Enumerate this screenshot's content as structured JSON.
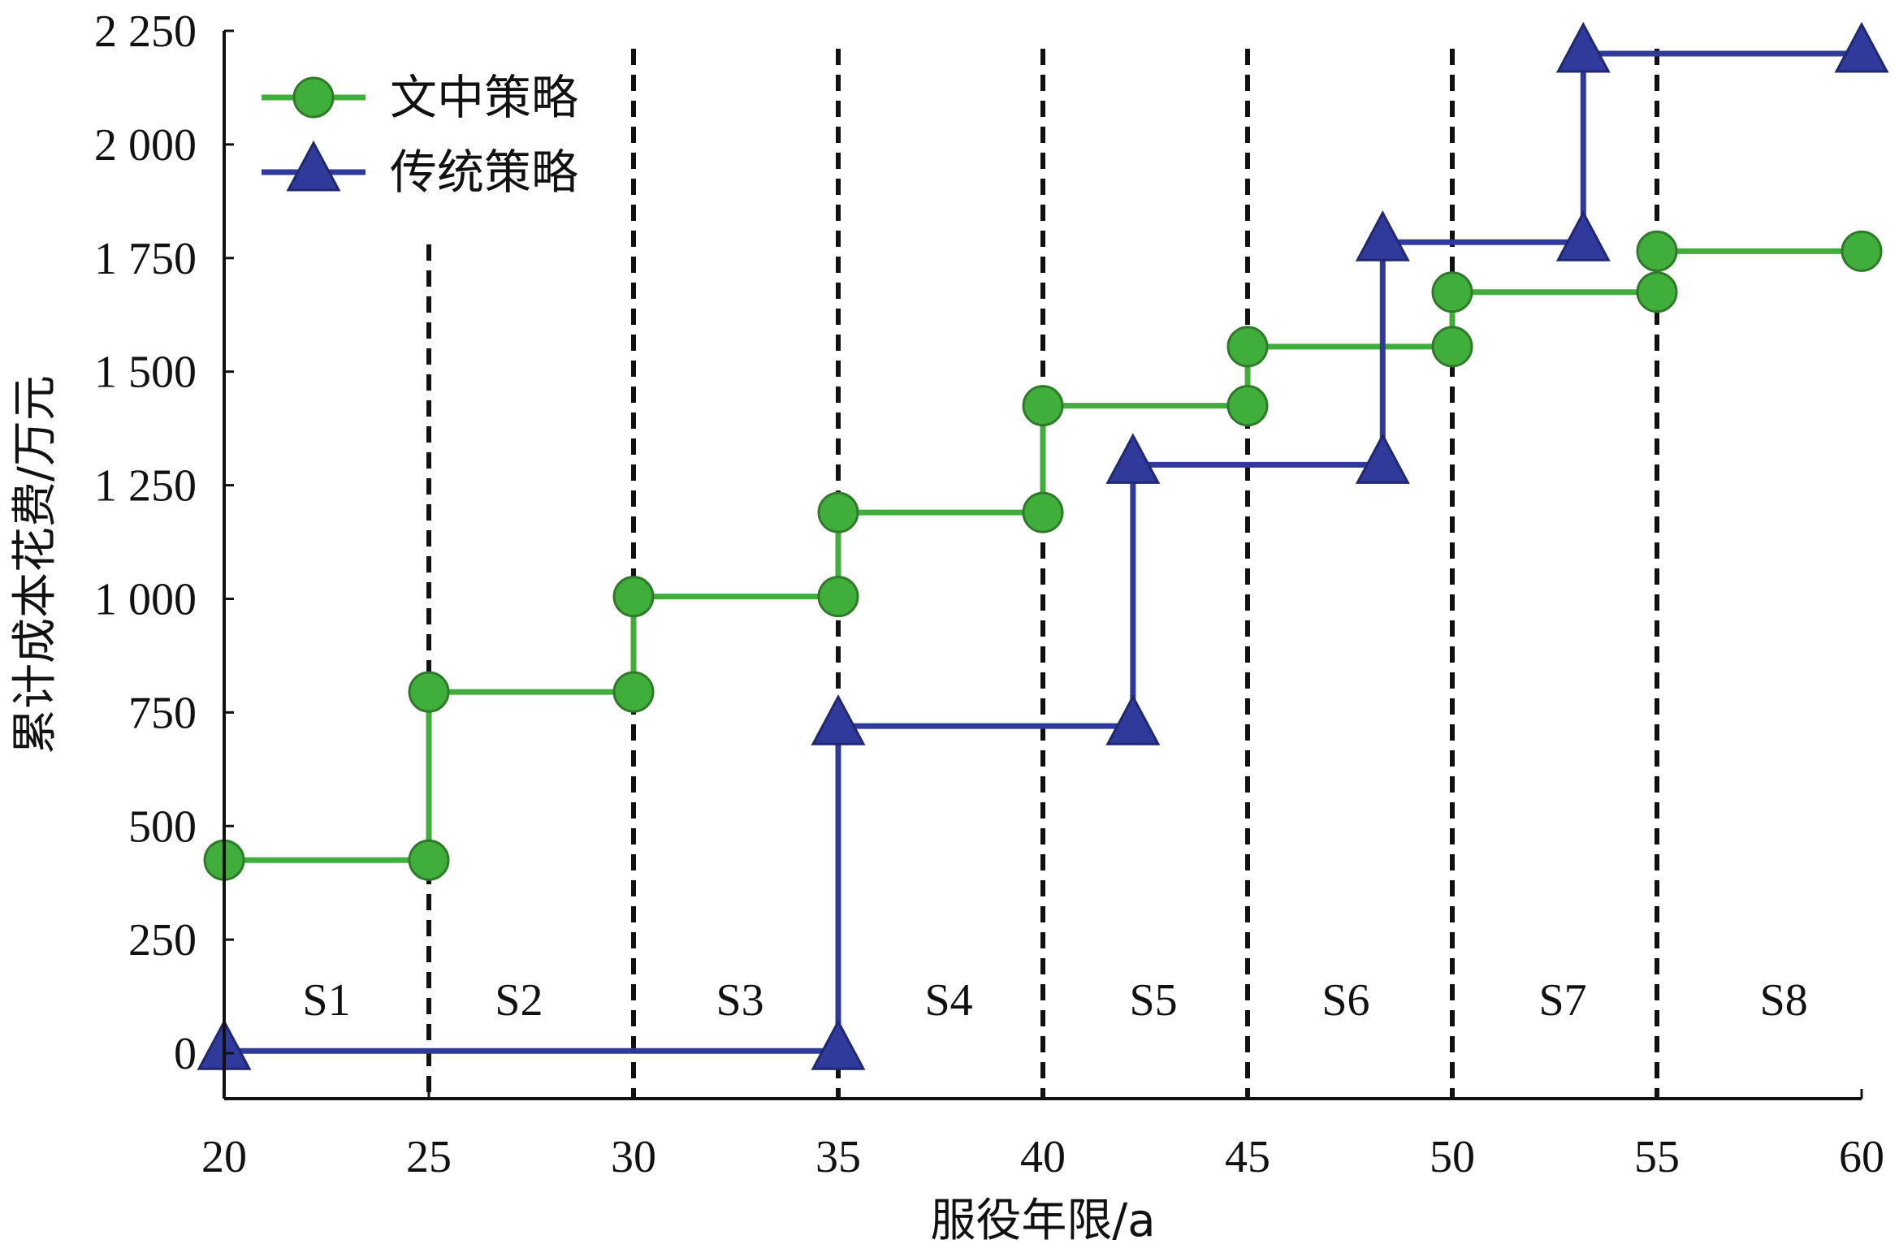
{
  "chart_data": {
    "type": "line",
    "step": true,
    "title": "",
    "xlabel": "服役年限/a",
    "ylabel": "累计成本花费/万元",
    "xlim": [
      20,
      60
    ],
    "ylim": [
      -100,
      2250
    ],
    "xticks": [
      20,
      25,
      30,
      35,
      40,
      45,
      50,
      55,
      60
    ],
    "yticks": [
      0,
      250,
      500,
      750,
      1000,
      1250,
      1500,
      1750,
      2000,
      2250
    ],
    "xtick_labels": [
      "20",
      "25",
      "30",
      "35",
      "40",
      "45",
      "50",
      "55",
      "60"
    ],
    "ytick_labels": [
      "0",
      "250",
      "500",
      "750",
      "1 000",
      "1 250",
      "1 500",
      "1 750",
      "2 000",
      "2 250"
    ],
    "stage_boundaries": [
      25,
      30,
      35,
      40,
      45,
      50,
      55
    ],
    "stages": [
      {
        "label": "S1",
        "x": 22.5
      },
      {
        "label": "S2",
        "x": 27.2
      },
      {
        "label": "S3",
        "x": 32.6
      },
      {
        "label": "S4",
        "x": 37.7
      },
      {
        "label": "S5",
        "x": 42.7
      },
      {
        "label": "S6",
        "x": 47.4
      },
      {
        "label": "S7",
        "x": 52.7
      },
      {
        "label": "S8",
        "x": 58.1
      }
    ],
    "legend_position": "top-left",
    "series": [
      {
        "name": "文中策略",
        "color": "#3fae3a",
        "marker": "circle",
        "steps": [
          {
            "x0": 20,
            "x1": 25,
            "y": 425
          },
          {
            "x0": 25,
            "x1": 30,
            "y": 795
          },
          {
            "x0": 30,
            "x1": 35,
            "y": 1005
          },
          {
            "x0": 35,
            "x1": 40,
            "y": 1190
          },
          {
            "x0": 40,
            "x1": 45,
            "y": 1425
          },
          {
            "x0": 45,
            "x1": 50,
            "y": 1555
          },
          {
            "x0": 50,
            "x1": 55,
            "y": 1675
          },
          {
            "x0": 55,
            "x1": 60,
            "y": 1765
          }
        ]
      },
      {
        "name": "传统策略",
        "color": "#2f3a9a",
        "marker": "triangle",
        "steps": [
          {
            "x0": 20,
            "x1": 35,
            "y": 5
          },
          {
            "x0": 35,
            "x1": 42.2,
            "y": 720
          },
          {
            "x0": 42.2,
            "x1": 48.3,
            "y": 1295
          },
          {
            "x0": 48.3,
            "x1": 53.2,
            "y": 1785
          },
          {
            "x0": 53.2,
            "x1": 60,
            "y": 2200
          }
        ]
      }
    ]
  }
}
